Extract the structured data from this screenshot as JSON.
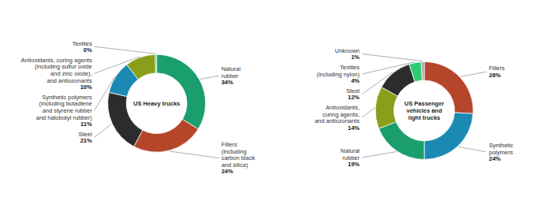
{
  "chart_data": [
    {
      "type": "donut",
      "title": "US Heavy trucks",
      "categories": [
        "Natural\nrubber",
        "Fillers\n(including\ncarbon black\nand silica)",
        "Steel",
        "Synthetic polymers\n(including butadiene\nand styrene rubber\nand halobutyl rubber)",
        "Antioxidants, curing agents\n(including sulfur oxide\nand zinc oxide),\nand antiozonants",
        "Textiles"
      ],
      "values": [
        34,
        24,
        21,
        11,
        10,
        0.5
      ],
      "value_labels": [
        "34%",
        "24%",
        "21%",
        "11%",
        "10%",
        "0%"
      ],
      "colors": [
        "#1a9e6e",
        "#b5462a",
        "#2c2c2c",
        "#1a8ab5",
        "#8a9e1a",
        "#2ecc71"
      ],
      "data_labels": true
    },
    {
      "type": "donut",
      "title": "US Passenger\nvehicles and\nlight trucks",
      "categories": [
        "Fillers",
        "Synthetic\npolymers",
        "Natural\nrubber",
        "Antioxidants,\ncuring agents,\nand antiozonants",
        "Steel",
        "Textiles\n(including nylon)",
        "Unknown"
      ],
      "values": [
        26,
        24,
        19,
        14,
        12,
        4,
        1
      ],
      "value_labels": [
        "26%",
        "24%",
        "19%",
        "14%",
        "12%",
        "4%",
        "1%"
      ],
      "colors": [
        "#b5462a",
        "#1a8ab5",
        "#1a9e6e",
        "#8a9e1a",
        "#2c2c2c",
        "#2ecc71",
        "#b0a0b5"
      ],
      "data_labels": true
    }
  ]
}
